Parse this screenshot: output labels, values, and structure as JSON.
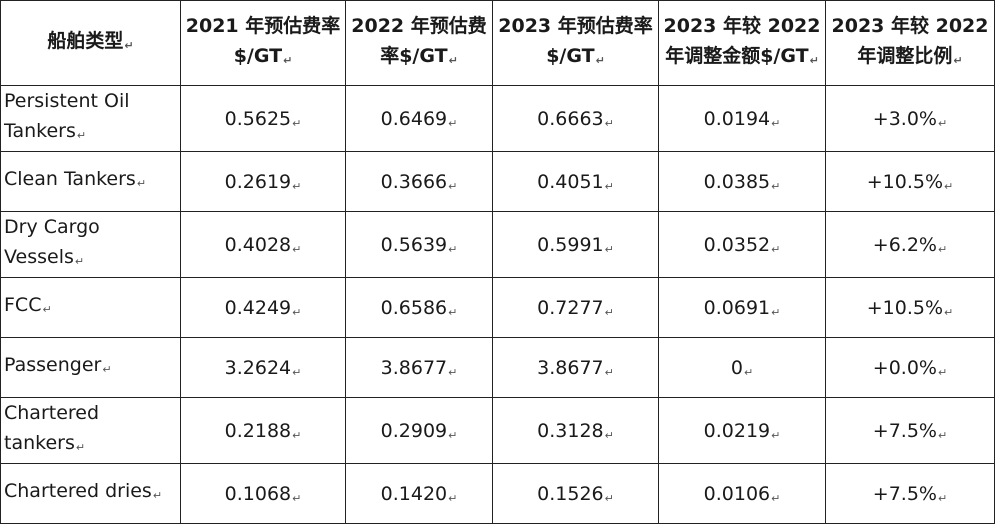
{
  "headers": [
    "船舶类型",
    "2021 年预估费率 $/GT",
    "2022 年预估费率$/GT",
    "2023 年预估费率 $/GT",
    "2023 年较 2022 年调整金额$/GT",
    "2023 年较 2022 年调整比例"
  ],
  "rows": [
    {
      "type": "Persistent Oil Tankers",
      "r2021": "0.5625",
      "r2022": "0.6469",
      "r2023": "0.6663",
      "adj_amount": "0.0194",
      "adj_ratio": "+3.0%"
    },
    {
      "type": "Clean Tankers",
      "r2021": "0.2619",
      "r2022": "0.3666",
      "r2023": "0.4051",
      "adj_amount": "0.0385",
      "adj_ratio": "+10.5%"
    },
    {
      "type": "Dry Cargo Vessels",
      "r2021": "0.4028",
      "r2022": "0.5639",
      "r2023": "0.5991",
      "adj_amount": "0.0352",
      "adj_ratio": "+6.2%"
    },
    {
      "type": "FCC",
      "r2021": "0.4249",
      "r2022": "0.6586",
      "r2023": "0.7277",
      "adj_amount": "0.0691",
      "adj_ratio": "+10.5%"
    },
    {
      "type": "Passenger",
      "r2021": "3.2624",
      "r2022": "3.8677",
      "r2023": "3.8677",
      "adj_amount": "0",
      "adj_ratio": "+0.0%"
    },
    {
      "type": "Chartered tankers",
      "r2021": "0.2188",
      "r2022": "0.2909",
      "r2023": "0.3128",
      "adj_amount": "0.0219",
      "adj_ratio": "+7.5%"
    },
    {
      "type": "Chartered dries",
      "r2021": "0.1068",
      "r2022": "0.1420",
      "r2023": "0.1526",
      "adj_amount": "0.0106",
      "adj_ratio": "+7.5%"
    }
  ],
  "paragraph_mark": "↵"
}
